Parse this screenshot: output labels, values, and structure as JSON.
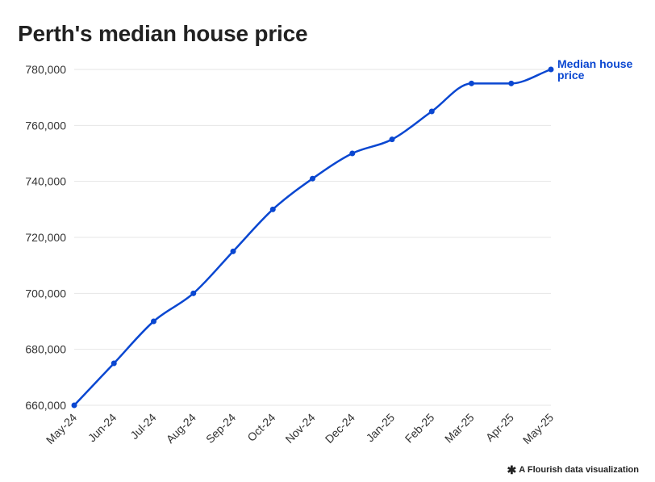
{
  "title": "Perth's median house price",
  "footer": {
    "credit_icon": "asterisk-icon",
    "credit_text": "A Flourish data visualization"
  },
  "colors": {
    "series": "#0a47d1",
    "grid": "#e6e6e6",
    "text": "#222222"
  },
  "chart_data": {
    "type": "line",
    "title": "Perth's median house price",
    "xlabel": "",
    "ylabel": "",
    "categories": [
      "May-24",
      "Jun-24",
      "Jul-24",
      "Aug-24",
      "Sep-24",
      "Oct-24",
      "Nov-24",
      "Dec-24",
      "Jan-25",
      "Feb-25",
      "Mar-25",
      "Apr-25",
      "May-25"
    ],
    "series": [
      {
        "name": "Median house price",
        "values": [
          660000,
          675000,
          690000,
          700000,
          715000,
          730000,
          741000,
          750000,
          755000,
          765000,
          775000,
          775000,
          780000
        ]
      }
    ],
    "ylim": [
      660000,
      780000
    ],
    "yticks": [
      660000,
      680000,
      700000,
      720000,
      740000,
      760000,
      780000
    ],
    "ytick_labels": [
      "660,000",
      "680,000",
      "700,000",
      "720,000",
      "740,000",
      "760,000",
      "780,000"
    ],
    "grid": true,
    "legend": "direct label at end of line"
  }
}
